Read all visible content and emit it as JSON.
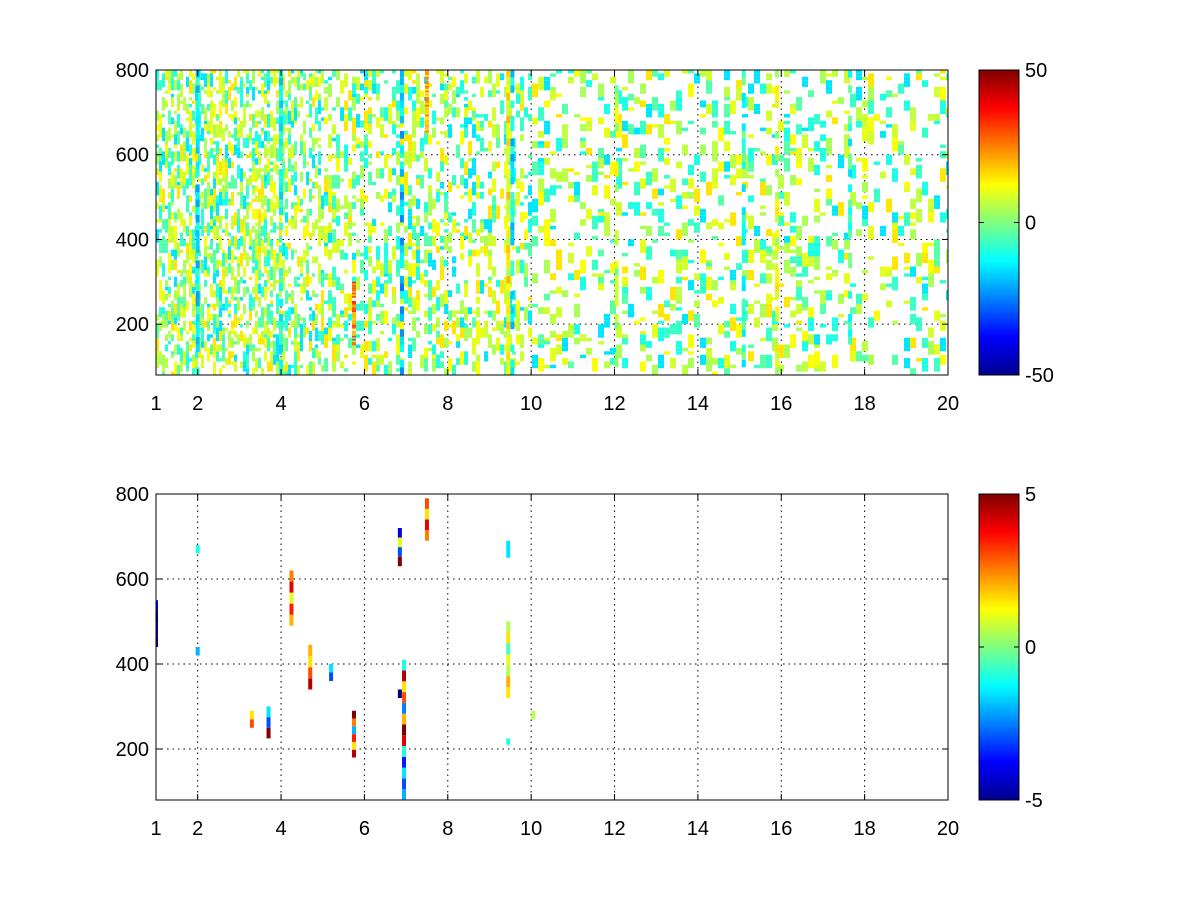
{
  "chart_data": [
    {
      "type": "heatmap",
      "title": "",
      "xlabel": "",
      "ylabel": "",
      "xlim": [
        1,
        20
      ],
      "ylim": [
        80,
        800
      ],
      "grid": true,
      "x_ticks": [
        1,
        2,
        4,
        6,
        8,
        10,
        12,
        14,
        16,
        18,
        20
      ],
      "x_tick_labels": [
        "1",
        "2",
        "4",
        "6",
        "8",
        "10",
        "12",
        "14",
        "16",
        "18",
        "20"
      ],
      "x_grid": [
        2,
        4,
        6,
        8,
        10,
        12,
        14,
        16,
        18
      ],
      "y_ticks": [
        200,
        400,
        600,
        800
      ],
      "y_tick_labels": [
        "200",
        "400",
        "600",
        "800"
      ],
      "colormap": "jet",
      "colorbar": {
        "min": -50,
        "max": 50,
        "ticks": [
          50,
          0,
          -50
        ],
        "tick_labels": [
          "50",
          "0",
          "-50"
        ]
      },
      "density_profile": [
        [
          1,
          0.55
        ],
        [
          2,
          0.75
        ],
        [
          3,
          0.55
        ],
        [
          3.5,
          0.75
        ],
        [
          4,
          0.6
        ],
        [
          5,
          0.5
        ],
        [
          6,
          0.45
        ],
        [
          7,
          0.5
        ],
        [
          8,
          0.35
        ],
        [
          9,
          0.35
        ],
        [
          10,
          0.3
        ],
        [
          12,
          0.3
        ],
        [
          14,
          0.3
        ],
        [
          16,
          0.3
        ],
        [
          18,
          0.25
        ],
        [
          20,
          0.25
        ]
      ],
      "strong_columns": [
        {
          "x": 2.0,
          "value": -14,
          "density": 0.85
        },
        {
          "x": 4.0,
          "value": -12,
          "density": 0.8
        },
        {
          "x": 5.75,
          "value": 25,
          "y_range": [
            150,
            300
          ],
          "density": 0.9
        },
        {
          "x": 6.9,
          "value": -18,
          "density": 0.8
        },
        {
          "x": 7.5,
          "value": 20,
          "y_range": [
            650,
            800
          ],
          "density": 0.9
        },
        {
          "x": 9.45,
          "value": 12,
          "density": 0.85
        },
        {
          "x": 9.55,
          "value": -14,
          "density": 0.75
        },
        {
          "x": 12.05,
          "value": 6,
          "density": 0.6
        },
        {
          "x": 15.1,
          "value": -8,
          "density": 0.7
        },
        {
          "x": 15.9,
          "value": 8,
          "density": 0.6
        },
        {
          "x": 17.65,
          "value": -8,
          "density": 0.6
        }
      ],
      "scatter_values": [
        -15,
        -10,
        -7,
        -4,
        4,
        6,
        8,
        10,
        12,
        15
      ]
    },
    {
      "type": "heatmap",
      "title": "",
      "xlabel": "",
      "ylabel": "",
      "xlim": [
        1,
        20
      ],
      "ylim": [
        80,
        800
      ],
      "grid": true,
      "x_ticks": [
        1,
        2,
        4,
        6,
        8,
        10,
        12,
        14,
        16,
        18,
        20
      ],
      "x_tick_labels": [
        "1",
        "2",
        "4",
        "6",
        "8",
        "10",
        "12",
        "14",
        "16",
        "18",
        "20"
      ],
      "x_grid": [
        2,
        4,
        6,
        8,
        10,
        12,
        14,
        16,
        18
      ],
      "y_ticks": [
        200,
        400,
        600,
        800
      ],
      "y_tick_labels": [
        "200",
        "400",
        "600",
        "800"
      ],
      "colormap": "jet",
      "colorbar": {
        "min": -5,
        "max": 5,
        "ticks": [
          5,
          0,
          -5
        ],
        "tick_labels": [
          "5",
          "0",
          "-5"
        ]
      },
      "cells": [
        {
          "x": 1.0,
          "y_start": 440,
          "y_end": 550,
          "values": [
            -5,
            -4.5,
            -5,
            -4
          ]
        },
        {
          "x": 2.0,
          "y_start": 420,
          "y_end": 440,
          "values": [
            -2
          ]
        },
        {
          "x": 2.0,
          "y_start": 660,
          "y_end": 680,
          "values": [
            -1
          ]
        },
        {
          "x": 3.3,
          "y_start": 250,
          "y_end": 290,
          "values": [
            3,
            1.5
          ]
        },
        {
          "x": 3.7,
          "y_start": 225,
          "y_end": 300,
          "values": [
            5,
            -3,
            -1.5
          ]
        },
        {
          "x": 4.25,
          "y_start": 490,
          "y_end": 620,
          "values": [
            2,
            3.5,
            1,
            4,
            2.5
          ]
        },
        {
          "x": 4.7,
          "y_start": 340,
          "y_end": 445,
          "values": [
            4.5,
            3,
            1.5,
            2
          ]
        },
        {
          "x": 5.2,
          "y_start": 360,
          "y_end": 400,
          "values": [
            -3,
            -1.5
          ]
        },
        {
          "x": 5.75,
          "y_start": 180,
          "y_end": 290,
          "values": [
            4.5,
            1.5,
            3.5,
            -2,
            2.5,
            5
          ]
        },
        {
          "x": 6.85,
          "y_start": 630,
          "y_end": 720,
          "values": [
            5,
            -3,
            1,
            -4
          ]
        },
        {
          "x": 6.85,
          "y_start": 320,
          "y_end": 340,
          "values": [
            -5
          ]
        },
        {
          "x": 6.95,
          "y_start": 80,
          "y_end": 410,
          "values": [
            -2,
            -3,
            -1.5,
            -3.5,
            -1,
            4,
            5,
            2,
            -2.5,
            3,
            1.5,
            4.5,
            -1
          ]
        },
        {
          "x": 7.5,
          "y_start": 690,
          "y_end": 790,
          "values": [
            2.5,
            4,
            1.5,
            3
          ]
        },
        {
          "x": 9.45,
          "y_start": 320,
          "y_end": 500,
          "values": [
            1.5,
            2,
            0.5,
            1,
            -0.5,
            1.5,
            0.5
          ]
        },
        {
          "x": 9.45,
          "y_start": 650,
          "y_end": 690,
          "values": [
            -1.5
          ]
        },
        {
          "x": 9.45,
          "y_start": 210,
          "y_end": 225,
          "values": [
            -1
          ]
        },
        {
          "x": 10.05,
          "y_start": 270,
          "y_end": 290,
          "values": [
            0.5
          ]
        }
      ]
    }
  ]
}
